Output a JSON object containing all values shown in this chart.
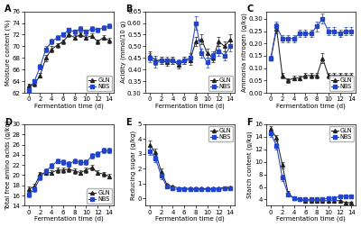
{
  "x": [
    0,
    1,
    2,
    3,
    4,
    5,
    6,
    7,
    8,
    9,
    10,
    11,
    12,
    13,
    14
  ],
  "A": {
    "title": "A",
    "ylabel": "Moisture content (%)",
    "xlabel": "Fermentation time (d)",
    "ylim": [
      62,
      76
    ],
    "yticks": [
      62,
      64,
      66,
      68,
      70,
      72,
      74,
      76
    ],
    "GLN": [
      63.2,
      63.5,
      65.0,
      68.0,
      69.5,
      70.2,
      70.8,
      72.0,
      71.5,
      72.0,
      71.5,
      71.8,
      70.8,
      71.5,
      71.0
    ],
    "NBS": [
      62.5,
      64.0,
      66.5,
      69.5,
      70.8,
      71.5,
      72.0,
      72.8,
      72.5,
      73.0,
      72.5,
      73.0,
      72.8,
      73.2,
      73.5
    ],
    "GLN_err": [
      0.4,
      0.4,
      0.4,
      0.5,
      0.5,
      0.4,
      0.4,
      0.4,
      0.4,
      0.4,
      0.4,
      0.4,
      0.4,
      0.4,
      0.4
    ],
    "NBS_err": [
      0.4,
      0.4,
      0.4,
      0.5,
      0.5,
      0.4,
      0.4,
      0.4,
      0.4,
      0.4,
      0.4,
      0.4,
      0.4,
      0.4,
      0.4
    ],
    "legend_loc": "lower right"
  },
  "B": {
    "title": "B",
    "ylabel": "Acidity (mmol/10 g)",
    "xlabel": "Fermentation time (d)",
    "ylim": [
      0.3,
      0.65
    ],
    "yticks": [
      0.3,
      0.35,
      0.4,
      0.45,
      0.5,
      0.55,
      0.6,
      0.65
    ],
    "GLN": [
      0.46,
      0.44,
      0.44,
      0.43,
      0.44,
      0.42,
      0.44,
      0.44,
      0.52,
      0.53,
      0.47,
      0.45,
      0.52,
      0.5,
      0.53
    ],
    "NBS": [
      0.45,
      0.43,
      0.44,
      0.44,
      0.44,
      0.43,
      0.44,
      0.45,
      0.6,
      0.47,
      0.43,
      0.46,
      0.48,
      0.46,
      0.5
    ],
    "GLN_err": [
      0.02,
      0.02,
      0.015,
      0.015,
      0.015,
      0.015,
      0.015,
      0.02,
      0.02,
      0.02,
      0.02,
      0.02,
      0.02,
      0.02,
      0.02
    ],
    "NBS_err": [
      0.02,
      0.02,
      0.015,
      0.015,
      0.015,
      0.015,
      0.015,
      0.02,
      0.03,
      0.02,
      0.02,
      0.02,
      0.02,
      0.02,
      0.02
    ],
    "legend_loc": "lower right"
  },
  "C": {
    "title": "C",
    "ylabel": "Ammonia nitrogen (g/kg)",
    "xlabel": "Fermentation time (d)",
    "ylim": [
      0.0,
      0.33
    ],
    "yticks": [
      0.0,
      0.05,
      0.1,
      0.15,
      0.2,
      0.25,
      0.3
    ],
    "GLN": [
      0.14,
      0.26,
      0.07,
      0.05,
      0.06,
      0.06,
      0.07,
      0.07,
      0.07,
      0.14,
      0.07,
      0.07,
      0.07,
      0.07,
      0.07
    ],
    "NBS": [
      0.14,
      0.27,
      0.22,
      0.22,
      0.22,
      0.24,
      0.24,
      0.24,
      0.27,
      0.3,
      0.25,
      0.25,
      0.24,
      0.25,
      0.25
    ],
    "GLN_err": [
      0.01,
      0.02,
      0.01,
      0.01,
      0.01,
      0.01,
      0.01,
      0.01,
      0.01,
      0.02,
      0.01,
      0.01,
      0.01,
      0.01,
      0.01
    ],
    "NBS_err": [
      0.01,
      0.02,
      0.015,
      0.015,
      0.015,
      0.015,
      0.015,
      0.015,
      0.02,
      0.02,
      0.015,
      0.015,
      0.015,
      0.015,
      0.015
    ],
    "legend_loc": "lower right"
  },
  "D": {
    "title": "D",
    "ylabel": "Total free amino acids (g/kg)",
    "xlabel": "Fermentation time (d)",
    "ylim": [
      14,
      30
    ],
    "yticks": [
      14,
      16,
      18,
      20,
      22,
      24,
      26,
      28,
      30
    ],
    "GLN": [
      17.2,
      17.8,
      20.2,
      20.5,
      20.5,
      21.0,
      21.0,
      21.2,
      20.8,
      20.5,
      21.0,
      21.5,
      20.5,
      20.2,
      19.8
    ],
    "NBS": [
      16.2,
      17.2,
      19.5,
      20.8,
      21.8,
      22.8,
      22.5,
      22.2,
      22.8,
      22.5,
      22.5,
      23.8,
      24.2,
      24.8,
      24.8
    ],
    "GLN_err": [
      0.5,
      0.5,
      0.5,
      0.5,
      0.5,
      0.5,
      0.5,
      0.5,
      0.5,
      0.5,
      0.5,
      0.5,
      0.5,
      0.5,
      0.5
    ],
    "NBS_err": [
      0.5,
      0.5,
      0.5,
      0.5,
      0.5,
      0.5,
      0.5,
      0.5,
      0.5,
      0.5,
      0.5,
      0.5,
      0.5,
      0.5,
      0.5
    ],
    "legend_loc": "lower right"
  },
  "E": {
    "title": "E",
    "ylabel": "Reducing sugar (g/kg)",
    "xlabel": "Fermentation time (d)",
    "ylim": [
      -0.5,
      5.0
    ],
    "yticks": [
      0,
      1,
      2,
      3,
      4,
      5
    ],
    "GLN": [
      3.6,
      3.1,
      1.8,
      0.9,
      0.8,
      0.7,
      0.7,
      0.65,
      0.65,
      0.65,
      0.65,
      0.65,
      0.7,
      0.7,
      0.75
    ],
    "NBS": [
      3.2,
      2.7,
      1.5,
      0.8,
      0.65,
      0.6,
      0.6,
      0.6,
      0.6,
      0.6,
      0.6,
      0.6,
      0.6,
      0.65,
      0.65
    ],
    "GLN_err": [
      0.3,
      0.25,
      0.2,
      0.1,
      0.05,
      0.05,
      0.05,
      0.05,
      0.05,
      0.05,
      0.05,
      0.05,
      0.05,
      0.05,
      0.05
    ],
    "NBS_err": [
      0.3,
      0.25,
      0.2,
      0.1,
      0.05,
      0.05,
      0.05,
      0.05,
      0.05,
      0.05,
      0.05,
      0.05,
      0.05,
      0.05,
      0.05
    ],
    "legend_loc": "upper right"
  },
  "F": {
    "title": "F",
    "ylabel": "Starch content (g/kg)",
    "xlabel": "Fermentation time (d)",
    "ylim": [
      3,
      16
    ],
    "yticks": [
      4,
      6,
      8,
      10,
      12,
      14,
      16
    ],
    "GLN": [
      15.2,
      13.8,
      9.5,
      5.0,
      4.2,
      4.0,
      3.8,
      3.8,
      3.8,
      3.8,
      3.8,
      3.8,
      3.8,
      3.5,
      3.5
    ],
    "NBS": [
      14.5,
      12.5,
      7.5,
      4.8,
      4.2,
      4.0,
      4.0,
      4.0,
      4.0,
      4.0,
      4.2,
      4.2,
      4.5,
      4.5,
      4.5
    ],
    "GLN_err": [
      0.5,
      0.5,
      0.5,
      0.3,
      0.2,
      0.15,
      0.15,
      0.15,
      0.15,
      0.15,
      0.15,
      0.15,
      0.15,
      0.15,
      0.15
    ],
    "NBS_err": [
      0.5,
      0.5,
      0.5,
      0.3,
      0.2,
      0.15,
      0.15,
      0.15,
      0.15,
      0.15,
      0.15,
      0.15,
      0.15,
      0.15,
      0.15
    ],
    "legend_loc": "upper right"
  },
  "GLN_color": "#222222",
  "NBS_color": "#2244cc",
  "GLN_marker": "^",
  "NBS_marker": "s",
  "linewidth": 0.75,
  "markersize": 2.8,
  "error_cap": 1.2,
  "error_linewidth": 0.5,
  "x_ticks": [
    0,
    2,
    4,
    6,
    8,
    10,
    12,
    14
  ],
  "tick_fontsize": 5.0,
  "label_fontsize": 5.0,
  "legend_fontsize": 4.8,
  "title_fontsize": 7.0,
  "background_color": "#ffffff"
}
